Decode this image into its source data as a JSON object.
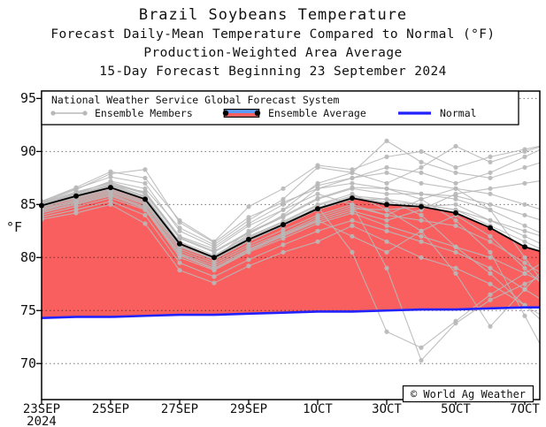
{
  "title": "Brazil Soybeans Temperature",
  "subtitles": [
    "Forecast Daily-Mean Temperature Compared to Normal (°F)",
    "Production-Weighted Area Average",
    "15-Day Forecast Beginning 23 September 2024"
  ],
  "watermark": "© World Ag Weather",
  "legend": {
    "header": "National Weather Service Global Forecast System",
    "entries": [
      {
        "label": "Ensemble Members",
        "swatch": "gray-line-with-dots"
      },
      {
        "label": "Ensemble Average",
        "swatch": "red-blue-capsule"
      },
      {
        "label": "Normal",
        "swatch": "blue-line"
      }
    ]
  },
  "colors": {
    "member_gray": "#b8b8b8",
    "average_black": "#000000",
    "warm_fill_red": "#fa5f5f",
    "cool_swatch_blue": "#5b9bf8",
    "normal_blue": "#2222ff",
    "grid_dots": "#000000"
  },
  "chart_data": {
    "type": "line",
    "title": "Brazil Soybeans Temperature",
    "xlabel": "",
    "ylabel": "°F",
    "ylim": [
      66.6,
      95.7
    ],
    "yticks": [
      70,
      75,
      80,
      85,
      90,
      95
    ],
    "grid": "horizontal-dotted",
    "legend_position": "top-left-box",
    "x": [
      "23SEP",
      "24SEP",
      "25SEP",
      "26SEP",
      "27SEP",
      "28SEP",
      "29SEP",
      "30SEP",
      "1OCT",
      "2OCT",
      "3OCT",
      "4OCT",
      "5OCT",
      "6OCT",
      "7OCT"
    ],
    "xtick_indices": [
      0,
      2,
      4,
      6,
      8,
      10,
      12,
      14
    ],
    "xtick_labels": [
      "23SEP",
      "25SEP",
      "27SEP",
      "29SEP",
      "1OCT",
      "3OCT",
      "5OCT",
      "7OCT"
    ],
    "xtick_year": {
      "index": 0,
      "text": "2024"
    },
    "series": [
      {
        "name": "Ensemble Average",
        "values": [
          84.9,
          85.8,
          86.6,
          85.5,
          81.3,
          80.0,
          81.7,
          83.1,
          84.6,
          85.6,
          85.0,
          84.8,
          84.2,
          82.8,
          81.0
        ],
        "edge_value": 80.6,
        "fill_between": "Normal",
        "fill_color": "#fa5f5f"
      },
      {
        "name": "Normal",
        "values": [
          74.3,
          74.4,
          74.4,
          74.5,
          74.6,
          74.6,
          74.7,
          74.8,
          74.9,
          74.9,
          75.0,
          75.1,
          75.1,
          75.2,
          75.3
        ],
        "edge_value": 75.3
      }
    ],
    "members": {
      "name": "Ensemble Members",
      "series": [
        [
          85.2,
          86.2,
          87.0,
          86.0,
          81.8,
          80.5,
          82.3,
          83.8,
          85.5,
          86.5,
          86.0,
          86.0,
          85.5,
          84.5,
          83.0
        ],
        [
          84.4,
          85.3,
          86.1,
          85.0,
          80.6,
          79.4,
          81.0,
          82.3,
          83.8,
          84.8,
          84.0,
          83.5,
          83.0,
          81.5,
          79.5
        ],
        [
          85.3,
          86.5,
          87.6,
          87.0,
          82.5,
          81.0,
          83.2,
          85.0,
          86.8,
          87.5,
          88.0,
          87.0,
          86.5,
          86.0,
          85.0
        ],
        [
          84.8,
          85.8,
          86.8,
          86.2,
          82.0,
          80.8,
          83.0,
          84.5,
          87.0,
          88.0,
          91.0,
          89.0,
          88.0,
          87.5,
          88.5
        ],
        [
          85.0,
          86.0,
          87.2,
          86.5,
          82.8,
          81.2,
          83.5,
          85.5,
          88.5,
          88.0,
          87.0,
          88.5,
          90.5,
          89.0,
          90.0
        ],
        [
          84.6,
          85.5,
          86.3,
          85.2,
          81.0,
          79.8,
          81.5,
          83.0,
          84.5,
          85.5,
          85.5,
          85.0,
          84.5,
          83.5,
          82.0
        ],
        [
          84.0,
          84.8,
          85.6,
          84.5,
          80.0,
          78.8,
          80.5,
          81.8,
          83.2,
          84.2,
          83.0,
          82.0,
          81.0,
          80.0,
          78.5
        ],
        [
          83.8,
          84.5,
          85.3,
          84.0,
          79.5,
          78.2,
          79.8,
          81.2,
          82.5,
          83.5,
          82.5,
          81.5,
          80.5,
          79.0,
          77.0
        ],
        [
          83.6,
          84.2,
          85.0,
          83.2,
          78.8,
          77.6,
          79.2,
          80.5,
          81.5,
          83.0,
          81.5,
          80.0,
          79.0,
          77.5,
          75.5
        ],
        [
          84.8,
          85.6,
          86.4,
          85.3,
          81.0,
          79.9,
          81.6,
          83.0,
          84.8,
          80.5,
          73.0,
          71.5,
          74.0,
          76.5,
          78.5
        ],
        [
          84.5,
          85.4,
          86.2,
          85.1,
          80.8,
          79.6,
          81.2,
          82.6,
          84.0,
          85.0,
          79.0,
          70.3,
          73.8,
          76.0,
          77.5
        ],
        [
          85.1,
          86.0,
          86.9,
          85.8,
          81.5,
          80.2,
          82.0,
          83.4,
          85.0,
          86.0,
          84.5,
          82.5,
          78.5,
          73.5,
          77.0
        ],
        [
          85.2,
          86.4,
          87.9,
          88.3,
          83.3,
          81.4,
          83.8,
          85.2,
          86.5,
          87.0,
          86.5,
          86.0,
          85.8,
          85.0,
          84.0
        ],
        [
          84.9,
          85.9,
          86.7,
          85.6,
          81.3,
          80.1,
          81.8,
          83.2,
          84.7,
          85.7,
          85.2,
          85.0,
          84.5,
          83.0,
          81.5
        ],
        [
          84.7,
          85.7,
          86.5,
          85.4,
          81.1,
          79.9,
          82.5,
          84.5,
          86.0,
          85.0,
          84.0,
          85.5,
          86.5,
          84.5,
          80.0
        ],
        [
          85.0,
          85.9,
          86.8,
          85.7,
          81.4,
          80.0,
          81.9,
          83.3,
          84.9,
          85.8,
          85.5,
          84.0,
          81.0,
          78.5,
          75.5
        ],
        [
          84.8,
          85.7,
          86.5,
          85.5,
          81.2,
          80.0,
          82.2,
          84.0,
          86.5,
          87.5,
          88.5,
          88.0,
          87.0,
          88.0,
          89.5
        ],
        [
          84.5,
          85.2,
          86.0,
          84.8,
          80.4,
          79.2,
          80.8,
          82.2,
          83.6,
          84.6,
          84.5,
          84.8,
          85.0,
          83.5,
          82.5
        ],
        [
          85.3,
          86.6,
          88.1,
          87.5,
          83.5,
          81.5,
          84.8,
          86.5,
          88.7,
          88.3,
          89.5,
          90.0,
          88.5,
          89.5,
          90.2
        ],
        [
          84.2,
          85.0,
          85.8,
          84.6,
          80.2,
          78.9,
          80.6,
          82.0,
          83.4,
          84.4,
          83.5,
          84.5,
          86.0,
          86.5,
          87.0
        ],
        [
          84.3,
          85.1,
          85.9,
          84.7,
          80.3,
          79.0,
          80.7,
          82.1,
          83.5,
          82.0,
          80.5,
          82.5,
          84.0,
          82.0,
          79.0
        ],
        [
          85.1,
          86.1,
          87.1,
          86.1,
          81.9,
          80.6,
          82.4,
          83.9,
          85.6,
          86.6,
          86.5,
          85.5,
          83.5,
          80.5,
          74.5
        ]
      ]
    }
  }
}
